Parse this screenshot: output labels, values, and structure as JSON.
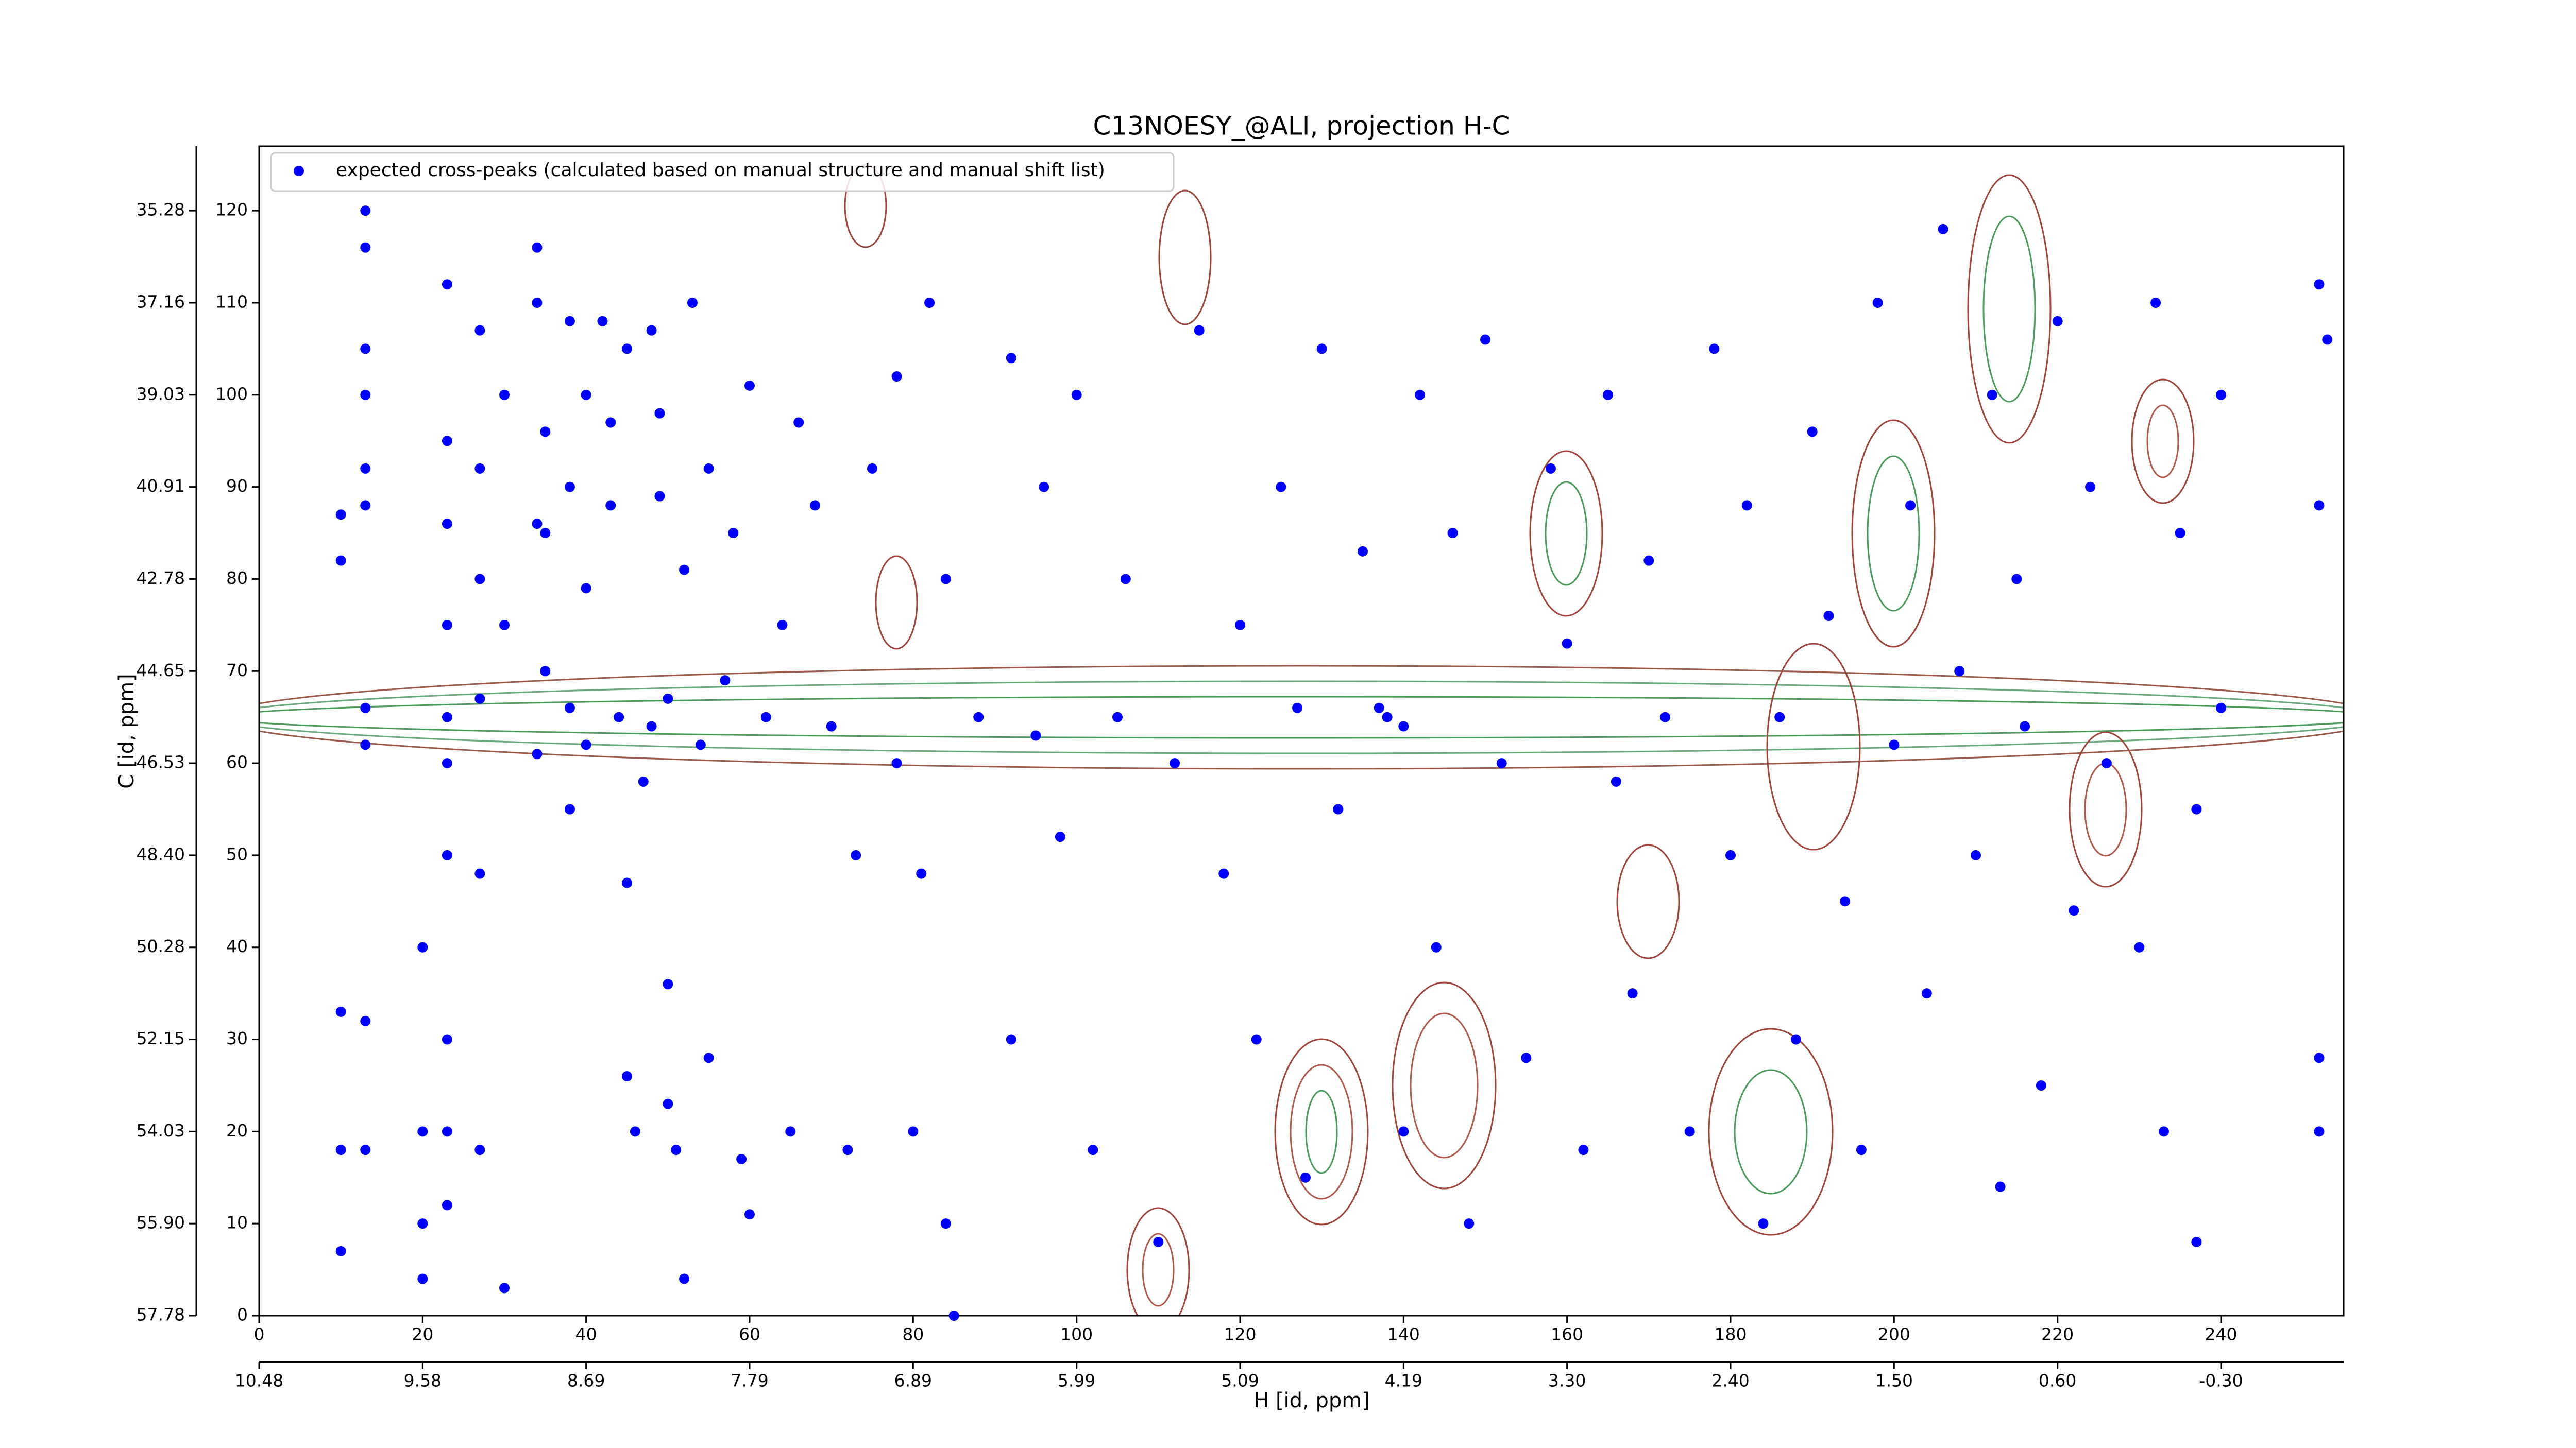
{
  "chart_data": {
    "type": "scatter",
    "title": "C13NOESY_@ALI, projection H-C",
    "x_label": "H [id, ppm]",
    "y_label": "C [id, ppm]",
    "xlim": [
      0,
      255
    ],
    "ylim": [
      0,
      127
    ],
    "xticks": [
      0,
      20,
      40,
      60,
      80,
      100,
      120,
      140,
      160,
      180,
      200,
      220,
      240
    ],
    "yticks": [
      0,
      10,
      20,
      30,
      40,
      50,
      60,
      70,
      80,
      90,
      100,
      110,
      120
    ],
    "x2ticks": [
      {
        "value": 0,
        "label": "10.48"
      },
      {
        "value": 20,
        "label": "9.58"
      },
      {
        "value": 40,
        "label": "8.69"
      },
      {
        "value": 60,
        "label": "7.79"
      },
      {
        "value": 80,
        "label": "6.89"
      },
      {
        "value": 100,
        "label": "5.99"
      },
      {
        "value": 120,
        "label": "5.09"
      },
      {
        "value": 140,
        "label": "4.19"
      },
      {
        "value": 160,
        "label": "3.30"
      },
      {
        "value": 180,
        "label": "2.40"
      },
      {
        "value": 200,
        "label": "1.50"
      },
      {
        "value": 220,
        "label": "0.60"
      },
      {
        "value": 240,
        "label": "-0.30"
      }
    ],
    "y2ticks": [
      {
        "value": 0,
        "label": "57.78"
      },
      {
        "value": 10,
        "label": "55.90"
      },
      {
        "value": 20,
        "label": "54.03"
      },
      {
        "value": 30,
        "label": "52.15"
      },
      {
        "value": 40,
        "label": "50.28"
      },
      {
        "value": 50,
        "label": "48.40"
      },
      {
        "value": 60,
        "label": "46.53"
      },
      {
        "value": 70,
        "label": "44.65"
      },
      {
        "value": 80,
        "label": "42.78"
      },
      {
        "value": 90,
        "label": "40.91"
      },
      {
        "value": 100,
        "label": "39.03"
      },
      {
        "value": 110,
        "label": "37.16"
      },
      {
        "value": 120,
        "label": "35.28"
      }
    ],
    "legend": "upper left",
    "series": [
      {
        "name": "expected cross-peaks (calculated based on manual structure and manual shift list)",
        "color": "#0000ff",
        "x": [
          10,
          10,
          10,
          10,
          10,
          13,
          13,
          13,
          13,
          13,
          13,
          13,
          13,
          13,
          13,
          20,
          20,
          20,
          20,
          23,
          23,
          23,
          23,
          23,
          23,
          23,
          23,
          23,
          23,
          27,
          27,
          27,
          27,
          27,
          27,
          30,
          30,
          30,
          34,
          34,
          34,
          34,
          35,
          35,
          35,
          38,
          38,
          38,
          38,
          40,
          40,
          40,
          42,
          43,
          43,
          44,
          45,
          45,
          45,
          46,
          47,
          48,
          48,
          49,
          49,
          50,
          50,
          50,
          51,
          52,
          52,
          53,
          54,
          55,
          55,
          57,
          58,
          59,
          60,
          60,
          62,
          64,
          65,
          66,
          68,
          70,
          72,
          73,
          75,
          78,
          78,
          80,
          81,
          82,
          84,
          84,
          85,
          88,
          92,
          92,
          95,
          96,
          98,
          100,
          102,
          105,
          106,
          110,
          112,
          115,
          118,
          120,
          122,
          125,
          127,
          128,
          130,
          132,
          135,
          137,
          138,
          140,
          140,
          142,
          144,
          146,
          148,
          150,
          152,
          155,
          158,
          160,
          162,
          165,
          166,
          168,
          170,
          172,
          175,
          178,
          180,
          182,
          184,
          186,
          188,
          190,
          192,
          194,
          196,
          198,
          200,
          202,
          204,
          206,
          208,
          210,
          212,
          213,
          215,
          216,
          218,
          220,
          222,
          224,
          226,
          230,
          232,
          233,
          235,
          237,
          237,
          240,
          240,
          252,
          252,
          252,
          252,
          253
        ],
        "values": [
          33,
          18,
          7,
          87,
          82,
          120,
          116,
          105,
          100,
          92,
          88,
          66,
          62,
          32,
          18,
          40,
          20,
          10,
          4,
          112,
          95,
          86,
          75,
          65,
          60,
          50,
          30,
          20,
          12,
          107,
          92,
          80,
          67,
          48,
          18,
          100,
          75,
          3,
          116,
          110,
          86,
          61,
          96,
          85,
          70,
          108,
          90,
          66,
          55,
          100,
          79,
          62,
          108,
          97,
          88,
          65,
          105,
          47,
          26,
          20,
          58,
          107,
          64,
          98,
          89,
          67,
          36,
          23,
          18,
          4,
          81,
          110,
          62,
          92,
          28,
          69,
          85,
          17,
          101,
          11,
          65,
          75,
          20,
          97,
          88,
          64,
          18,
          50,
          92,
          102,
          60,
          20,
          48,
          110,
          80,
          10,
          0,
          65,
          104,
          30,
          63,
          90,
          52,
          100,
          18,
          65,
          80,
          8,
          60,
          107,
          48,
          75,
          30,
          90,
          66,
          15,
          105,
          55,
          83,
          66,
          65,
          64,
          20,
          100,
          40,
          85,
          10,
          106,
          60,
          28,
          92,
          73,
          18,
          100,
          58,
          35,
          82,
          65,
          20,
          105,
          50,
          88,
          10,
          65,
          30,
          96,
          76,
          45,
          18,
          110,
          62,
          88,
          35,
          118,
          70,
          50,
          100,
          14,
          80,
          64,
          25,
          108,
          44,
          90,
          60,
          40,
          110,
          20,
          85,
          55,
          8,
          100,
          66,
          112,
          88,
          28,
          20,
          106
        ]
      }
    ]
  }
}
